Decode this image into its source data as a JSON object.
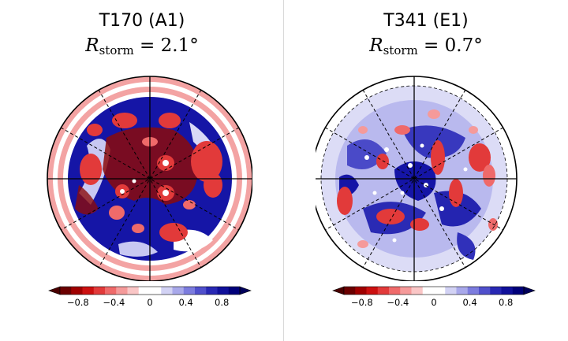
{
  "panels": [
    {
      "title": "T170  (A1)",
      "r_symbol": "R",
      "r_sub": "storm",
      "r_eq": " = 2.1°",
      "colorbar": {
        "ticks": [
          "−0.8",
          "−0.4",
          "0",
          "0.4",
          "0.8"
        ]
      }
    },
    {
      "title": "T341 (E1)",
      "r_symbol": "R",
      "r_sub": "storm",
      "r_eq": " = 0.7°",
      "colorbar": {
        "ticks": [
          "−0.8",
          "−0.4",
          "0",
          "0.4",
          "0.8"
        ]
      }
    }
  ],
  "colorbar_colors": [
    "#6b0000",
    "#a00000",
    "#cc1010",
    "#e23a3a",
    "#ef6a6a",
    "#f59a9a",
    "#fac6c6",
    "#ffffff",
    "#ffffff",
    "#d2d2f4",
    "#a8a8ea",
    "#7c7cde",
    "#5050cc",
    "#2828b4",
    "#10109a",
    "#00007a"
  ],
  "colors": {
    "red": "#e23a3a",
    "dark_red": "#8b0b0b",
    "blue": "#1515a6",
    "light_blue": "#b9b9ee",
    "pink": "#f3a3a3"
  }
}
